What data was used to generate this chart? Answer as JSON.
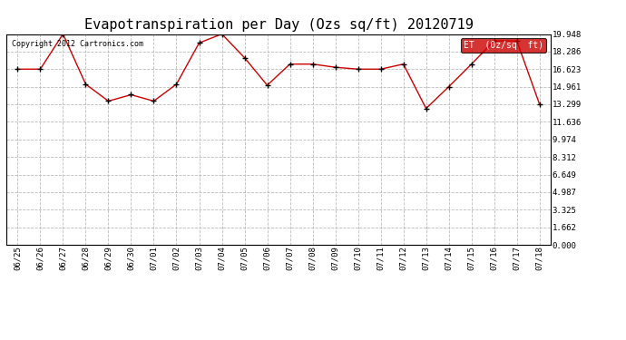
{
  "title": "Evapotranspiration per Day (Ozs sq/ft) 20120719",
  "copyright_text": "Copyright 2012 Cartronics.com",
  "legend_label": "ET  (0z/sq  ft)",
  "x_labels": [
    "06/25",
    "06/26",
    "06/27",
    "06/28",
    "06/29",
    "06/30",
    "07/01",
    "07/02",
    "07/03",
    "07/04",
    "07/05",
    "07/06",
    "07/07",
    "07/08",
    "07/09",
    "07/10",
    "07/11",
    "07/12",
    "07/13",
    "07/14",
    "07/15",
    "07/16",
    "07/17",
    "07/18"
  ],
  "y_values": [
    16.623,
    16.623,
    19.948,
    15.2,
    13.6,
    14.2,
    13.6,
    15.2,
    19.1,
    19.948,
    17.7,
    15.1,
    17.1,
    17.1,
    16.8,
    16.623,
    16.623,
    17.1,
    12.9,
    14.961,
    17.1,
    19.3,
    19.3,
    13.299
  ],
  "line_color": "#cc0000",
  "marker": "+",
  "background_color": "#ffffff",
  "grid_color": "#bbbbbb",
  "y_ticks": [
    0.0,
    1.662,
    3.325,
    4.987,
    6.649,
    8.312,
    9.974,
    11.636,
    13.299,
    14.961,
    16.623,
    18.286,
    19.948
  ],
  "ylim": [
    0.0,
    19.948
  ],
  "title_fontsize": 11,
  "legend_bg": "#cc0000",
  "legend_text_color": "#ffffff"
}
